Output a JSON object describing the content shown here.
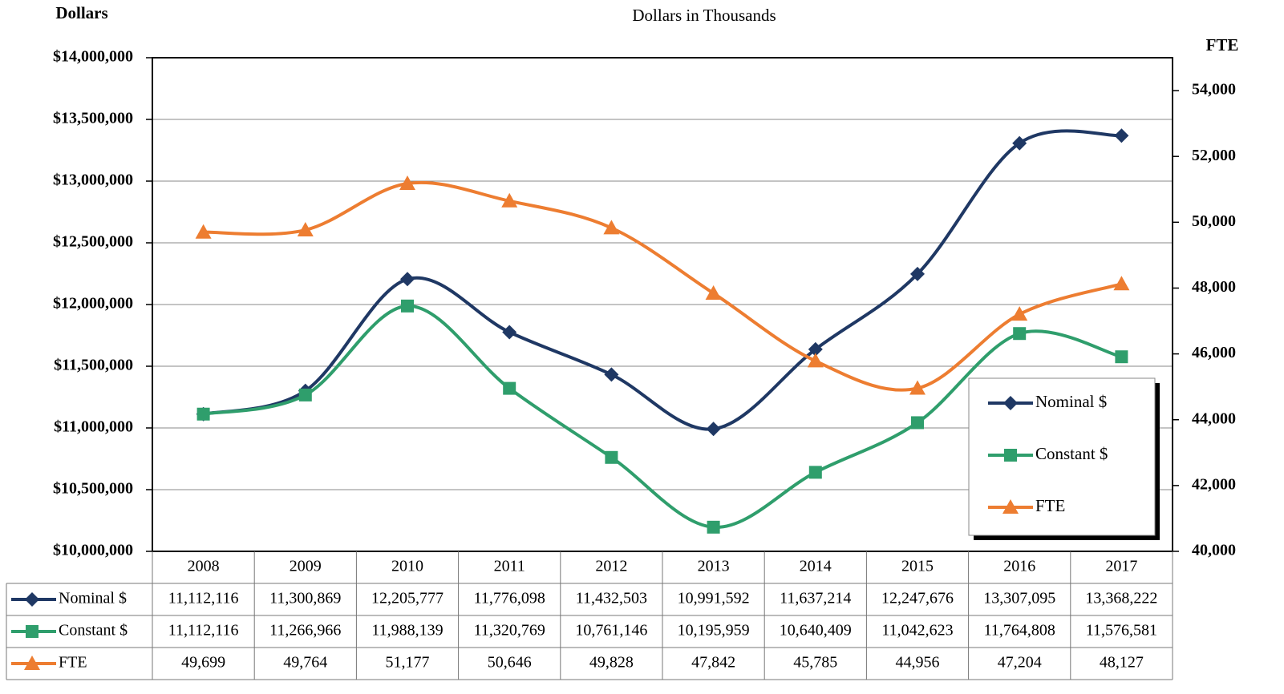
{
  "chart_data": {
    "type": "line",
    "title": "Dollars in Thousands",
    "y_label": "Dollars",
    "y2_label": "FTE",
    "categories": [
      "2008",
      "2009",
      "2010",
      "2011",
      "2012",
      "2013",
      "2014",
      "2015",
      "2016",
      "2017"
    ],
    "series": [
      {
        "name": "Nominal $",
        "color": "#1f3864",
        "marker": "diamond",
        "values": [
          11112116,
          11300869,
          12205777,
          11776098,
          11432503,
          10991592,
          11637214,
          12247676,
          13307095,
          13368222
        ],
        "value_labels": [
          "11,112,116",
          "11,300,869",
          "12,205,777",
          "11,776,098",
          "11,432,503",
          "10,991,592",
          "11,637,214",
          "12,247,676",
          "13,307,095",
          "13,368,222"
        ]
      },
      {
        "name": "Constant $",
        "color": "#2f9e6c",
        "marker": "square",
        "values": [
          11112116,
          11266966,
          11988139,
          11320769,
          10761146,
          10195959,
          10640409,
          11042623,
          11764808,
          11576581
        ],
        "value_labels": [
          "11,112,116",
          "11,266,966",
          "11,988,139",
          "11,320,769",
          "10,761,146",
          "10,195,959",
          "10,640,409",
          "11,042,623",
          "11,764,808",
          "11,576,581"
        ]
      },
      {
        "name": "FTE",
        "color": "#ed7d31",
        "marker": "triangle",
        "axis": "y2",
        "values": [
          49699,
          49764,
          51177,
          50646,
          49828,
          47842,
          45785,
          44956,
          47204,
          48127
        ],
        "value_labels": [
          "49,699",
          "49,764",
          "51,177",
          "50,646",
          "49,828",
          "47,842",
          "45,785",
          "44,956",
          "47,204",
          "48,127"
        ]
      }
    ],
    "ylim": [
      10000000,
      14000000
    ],
    "yticks": [
      {
        "value": 10000000,
        "label": "$10,000,000"
      },
      {
        "value": 10500000,
        "label": "$10,500,000"
      },
      {
        "value": 11000000,
        "label": "$11,000,000"
      },
      {
        "value": 11500000,
        "label": "$11,500,000"
      },
      {
        "value": 12000000,
        "label": "$12,000,000"
      },
      {
        "value": 12500000,
        "label": "$12,500,000"
      },
      {
        "value": 13000000,
        "label": "$13,000,000"
      },
      {
        "value": 13500000,
        "label": "$13,500,000"
      },
      {
        "value": 14000000,
        "label": "$14,000,000"
      }
    ],
    "y2lim": [
      40000,
      55000
    ],
    "y2ticks": [
      {
        "value": 40000,
        "label": "40,000"
      },
      {
        "value": 42000,
        "label": "42,000"
      },
      {
        "value": 44000,
        "label": "44,000"
      },
      {
        "value": 46000,
        "label": "46,000"
      },
      {
        "value": 48000,
        "label": "48,000"
      },
      {
        "value": 50000,
        "label": "50,000"
      },
      {
        "value": 52000,
        "label": "52,000"
      },
      {
        "value": 54000,
        "label": "54,000"
      }
    ],
    "grid": true,
    "legend": "lower right"
  }
}
